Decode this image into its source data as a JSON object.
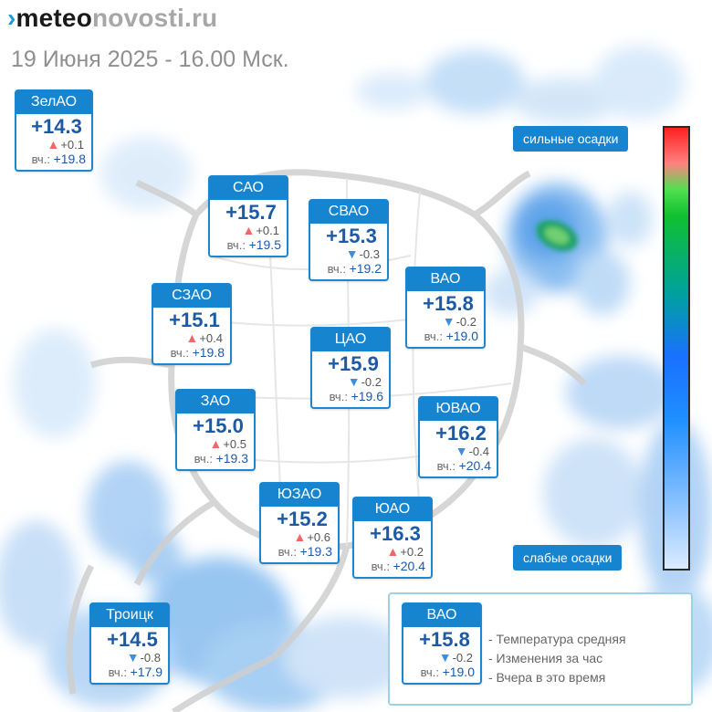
{
  "header": {
    "logo_mark": "›",
    "logo_part1": "meteo",
    "logo_part2": "novosti.ru",
    "subtitle": "19 Июня 2025 - 16.00 Мск."
  },
  "districts": [
    {
      "id": "zelao",
      "name": "ЗелАО",
      "temp": "+14.3",
      "trend": "up",
      "change": "+0.1",
      "yesterday_label": "вч.:",
      "yesterday": "+19.8"
    },
    {
      "id": "sao",
      "name": "САО",
      "temp": "+15.7",
      "trend": "up",
      "change": "+0.1",
      "yesterday_label": "вч.:",
      "yesterday": "+19.5"
    },
    {
      "id": "svao",
      "name": "СВАО",
      "temp": "+15.3",
      "trend": "down",
      "change": "-0.3",
      "yesterday_label": "вч.:",
      "yesterday": "+19.2"
    },
    {
      "id": "vao",
      "name": "ВАО",
      "temp": "+15.8",
      "trend": "down",
      "change": "-0.2",
      "yesterday_label": "вч.:",
      "yesterday": "+19.0"
    },
    {
      "id": "szao",
      "name": "СЗАО",
      "temp": "+15.1",
      "trend": "up",
      "change": "+0.4",
      "yesterday_label": "вч.:",
      "yesterday": "+19.8"
    },
    {
      "id": "cao",
      "name": "ЦАО",
      "temp": "+15.9",
      "trend": "down",
      "change": "-0.2",
      "yesterday_label": "вч.:",
      "yesterday": "+19.6"
    },
    {
      "id": "zao",
      "name": "ЗАО",
      "temp": "+15.0",
      "trend": "up",
      "change": "+0.5",
      "yesterday_label": "вч.:",
      "yesterday": "+19.3"
    },
    {
      "id": "yuvao",
      "name": "ЮВАО",
      "temp": "+16.2",
      "trend": "down",
      "change": "-0.4",
      "yesterday_label": "вч.:",
      "yesterday": "+20.4"
    },
    {
      "id": "yuzao",
      "name": "ЮЗАО",
      "temp": "+15.2",
      "trend": "up",
      "change": "+0.6",
      "yesterday_label": "вч.:",
      "yesterday": "+19.3"
    },
    {
      "id": "yuao",
      "name": "ЮАО",
      "temp": "+16.3",
      "trend": "up",
      "change": "+0.2",
      "yesterday_label": "вч.:",
      "yesterday": "+20.4"
    },
    {
      "id": "troitsk",
      "name": "Троицк",
      "temp": "+14.5",
      "trend": "down",
      "change": "-0.8",
      "yesterday_label": "вч.:",
      "yesterday": "+17.9"
    }
  ],
  "scale": {
    "top_label": "сильные осадки",
    "bottom_label": "слабые осадки"
  },
  "legend": {
    "example": {
      "name": "ВАО",
      "temp": "+15.8",
      "trend": "down",
      "change": "-0.2",
      "yesterday_label": "вч.:",
      "yesterday": "+19.0"
    },
    "items": [
      "- Температура средняя",
      "- Изменения за час",
      "- Вчера в это время"
    ]
  },
  "colors": {
    "brand_blue": "#1784cf",
    "temp_text": "#1d5aa6",
    "arrow_up": "#ef6868",
    "arrow_down": "#3b8fe0"
  }
}
